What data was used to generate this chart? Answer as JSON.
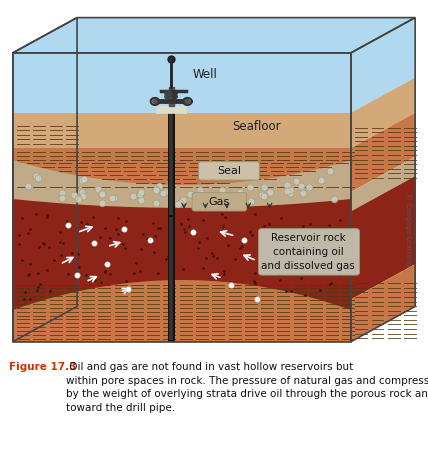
{
  "fig_width": 4.28,
  "fig_height": 4.76,
  "dpi": 100,
  "bg_color": "#ffffff",
  "caption_bold": "Figure 17.3",
  "caption_text": " Oil and gas are not found in vast hollow reservoirs but\nwithin pore spaces in rock. The pressure of natural gas and compression\nby the weight of overlying strata drive oil through the porous rock and\ntoward the drill pipe.",
  "caption_color_bold": "#cc3300",
  "caption_color_text": "#111111",
  "caption_fontsize": 7.5,
  "water_color": "#b0d8ee",
  "seafloor_sandy_color": "#d4a97a",
  "seal_color": "#c87848",
  "gas_color": "#c0aa88",
  "reservoir_color": "#8c2518",
  "bottom_orange_color": "#c87848",
  "side_dark_color": "#a05830",
  "label_well": "Well",
  "label_seafloor": "Seafloor",
  "label_seal": "Seal",
  "label_gas": "Gas",
  "label_reservoir": "Reservoir rock\ncontaining oil\nand dissolved gas",
  "copyright": "© Cengage Learning"
}
